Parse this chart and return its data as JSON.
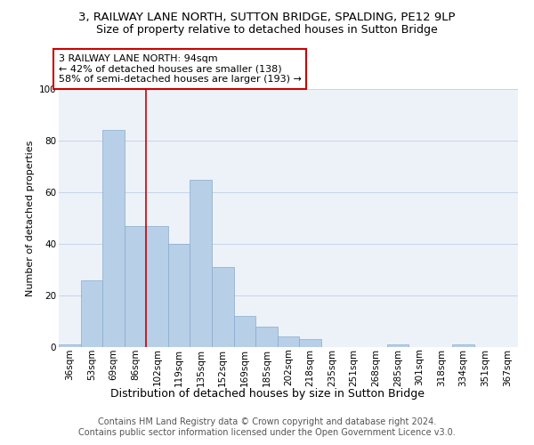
{
  "title": "3, RAILWAY LANE NORTH, SUTTON BRIDGE, SPALDING, PE12 9LP",
  "subtitle": "Size of property relative to detached houses in Sutton Bridge",
  "xlabel": "Distribution of detached houses by size in Sutton Bridge",
  "ylabel": "Number of detached properties",
  "categories": [
    "36sqm",
    "53sqm",
    "69sqm",
    "86sqm",
    "102sqm",
    "119sqm",
    "135sqm",
    "152sqm",
    "169sqm",
    "185sqm",
    "202sqm",
    "218sqm",
    "235sqm",
    "251sqm",
    "268sqm",
    "285sqm",
    "301sqm",
    "318sqm",
    "334sqm",
    "351sqm",
    "367sqm"
  ],
  "values": [
    1,
    26,
    84,
    47,
    47,
    40,
    65,
    31,
    12,
    8,
    4,
    3,
    0,
    0,
    0,
    1,
    0,
    0,
    1,
    0,
    0
  ],
  "bar_color": "#b8cfe8",
  "bar_edge_color": "#88aacc",
  "vline_index": 3,
  "vline_color": "#cc0000",
  "annotation_text": "3 RAILWAY LANE NORTH: 94sqm\n← 42% of detached houses are smaller (138)\n58% of semi-detached houses are larger (193) →",
  "annotation_box_color": "#ffffff",
  "annotation_box_edge": "#cc0000",
  "ylim": [
    0,
    100
  ],
  "yticks": [
    0,
    20,
    40,
    60,
    80,
    100
  ],
  "footer_line1": "Contains HM Land Registry data © Crown copyright and database right 2024.",
  "footer_line2": "Contains public sector information licensed under the Open Government Licence v3.0.",
  "background_color": "#edf2f9",
  "grid_color": "#c5d5e8",
  "title_fontsize": 9.5,
  "subtitle_fontsize": 9,
  "xlabel_fontsize": 9,
  "ylabel_fontsize": 8,
  "tick_fontsize": 7.5,
  "annotation_fontsize": 8,
  "footer_fontsize": 7
}
